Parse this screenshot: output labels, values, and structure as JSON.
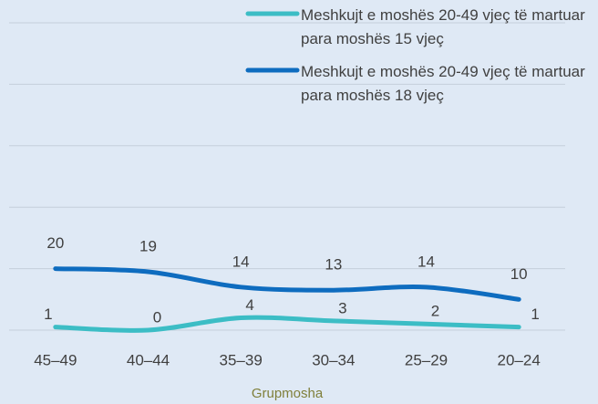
{
  "chart_data": {
    "type": "line",
    "categories": [
      "45–49",
      "40–44",
      "35–39",
      "30–34",
      "25–29",
      "20–24"
    ],
    "series": [
      {
        "name": "Meshkujt e moshës 20-49 vjeç të martuar para moshës 15 vjeç",
        "color": "#3cbdc5",
        "values": [
          1,
          0,
          4,
          3,
          2,
          1
        ]
      },
      {
        "name": "Meshkujt e moshës 20-49 vjeç të martuar para moshës 18 vjeç",
        "color": "#0e6cbf",
        "values": [
          20,
          19,
          14,
          13,
          14,
          10
        ]
      }
    ],
    "xlabel": "Grupmosha",
    "ylim": [
      0,
      100
    ],
    "yticks": [
      0,
      20,
      40,
      60,
      80,
      100
    ],
    "grid": true
  }
}
